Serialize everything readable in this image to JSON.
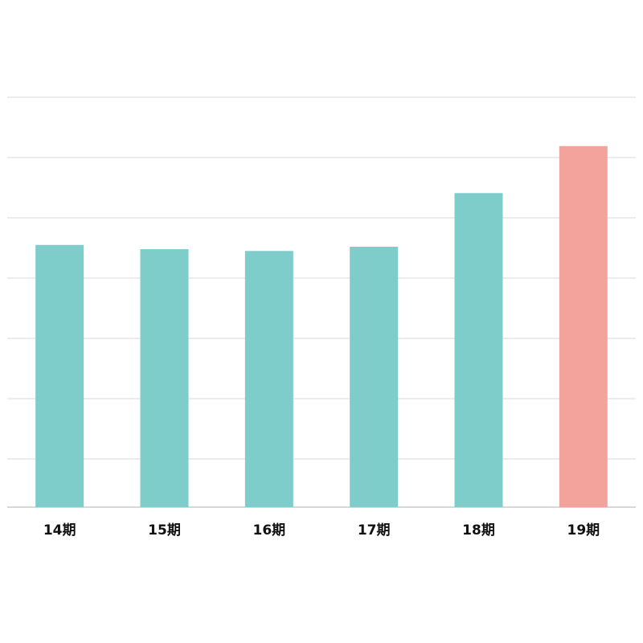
{
  "chart_data": {
    "type": "bar",
    "categories": [
      "14期",
      "15期",
      "16期",
      "17期",
      "18期",
      "19期"
    ],
    "values": [
      43.5,
      42.8,
      42.5,
      43.2,
      52.1,
      59.9
    ],
    "colors": [
      "#7ecdca",
      "#7ecdca",
      "#7ecdca",
      "#7ecdca",
      "#7ecdca",
      "#f4a29c"
    ],
    "ylim": [
      0,
      72
    ],
    "yticks": [
      8,
      18,
      28,
      38,
      48,
      58,
      68
    ],
    "grid": true
  }
}
